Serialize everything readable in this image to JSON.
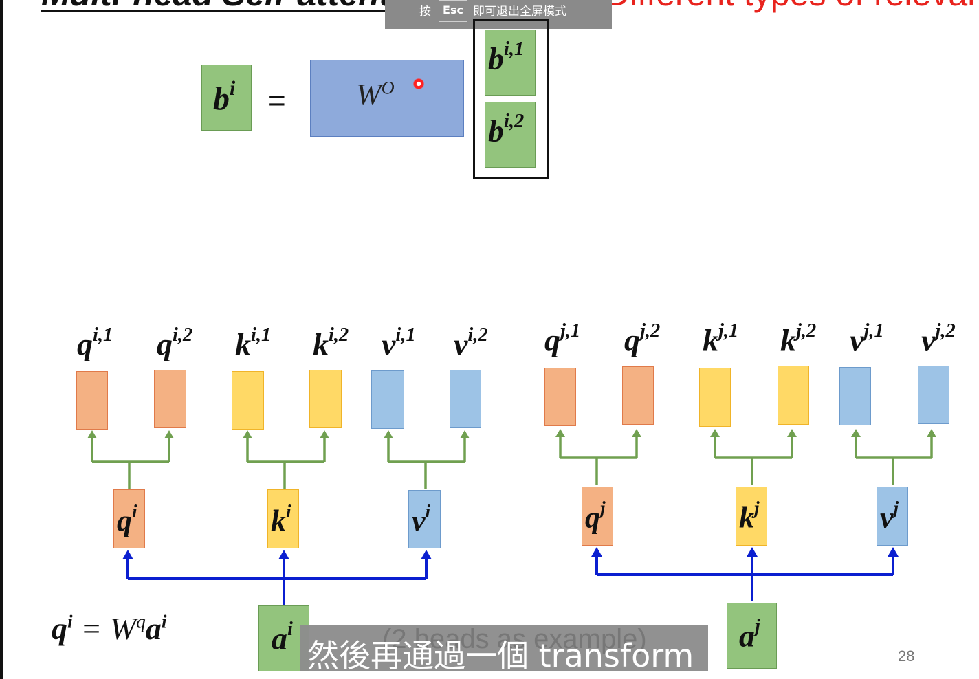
{
  "slide": {
    "title_left": "Multi-head Self-attention",
    "title_right": "Different types of relevance",
    "page_number": "28"
  },
  "fullscreen_hint": {
    "prefix": "按",
    "key": "Esc",
    "suffix": "即可退出全屏模式"
  },
  "top_equation": {
    "lhs": "b",
    "lhs_sup": "i",
    "equals": "=",
    "matrix_base": "W",
    "matrix_sup": "O",
    "stack": [
      {
        "base": "b",
        "sup": "i,1"
      },
      {
        "base": "b",
        "sup": "i,2"
      }
    ]
  },
  "heads_i": {
    "top_labels": [
      {
        "base": "q",
        "sup": "i,1"
      },
      {
        "base": "q",
        "sup": "i,2"
      },
      {
        "base": "k",
        "sup": "i,1"
      },
      {
        "base": "k",
        "sup": "i,2"
      },
      {
        "base": "v",
        "sup": "i,1"
      },
      {
        "base": "v",
        "sup": "i,2"
      }
    ],
    "mid_labels": [
      {
        "base": "q",
        "sup": "i"
      },
      {
        "base": "k",
        "sup": "i"
      },
      {
        "base": "v",
        "sup": "i"
      }
    ],
    "input": {
      "base": "a",
      "sup": "i"
    }
  },
  "heads_j": {
    "top_labels": [
      {
        "base": "q",
        "sup": "j,1"
      },
      {
        "base": "q",
        "sup": "j,2"
      },
      {
        "base": "k",
        "sup": "j,1"
      },
      {
        "base": "k",
        "sup": "j,2"
      },
      {
        "base": "v",
        "sup": "j,1"
      },
      {
        "base": "v",
        "sup": "j,2"
      }
    ],
    "mid_labels": [
      {
        "base": "q",
        "sup": "j"
      },
      {
        "base": "k",
        "sup": "j"
      },
      {
        "base": "v",
        "sup": "j"
      }
    ],
    "input": {
      "base": "a",
      "sup": "j"
    }
  },
  "formula": {
    "lhs": "q",
    "lhs_sup": "i",
    "eq": " = ",
    "w": "W",
    "w_sup": "q",
    "rhs": "a",
    "rhs_sup": "i"
  },
  "subtitle": {
    "background_text": "(2 heads as example)",
    "text": "然後再通過一個 transform"
  },
  "colors": {
    "green": "#93c47d",
    "blue": "#8eaadb",
    "orange": "#f4b183",
    "yellow": "#ffd966",
    "light_blue": "#9dc3e6",
    "arrow_green": "#70a050",
    "arrow_blue": "#0b1fd0",
    "title_red": "#e8231d"
  }
}
